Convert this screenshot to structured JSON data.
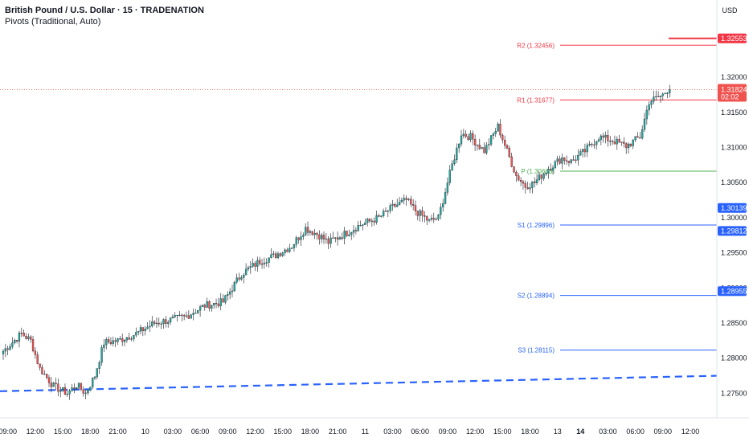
{
  "header": {
    "title": "British Pound / U.S. Dollar · 15 · TRADENATION",
    "indicator": "Pivots (Traditional, Auto)",
    "currency": "USD"
  },
  "colors": {
    "up": "#26a69a",
    "down": "#ef5350",
    "wick": "#131722",
    "resistance": "#f23645",
    "support": "#2962ff",
    "pivot": "#4caf50",
    "trend": "#2962ff"
  },
  "chart_data": {
    "type": "candlestick",
    "y_axis": {
      "min": 1.2715,
      "max": 1.331,
      "ticks": [
        1.275,
        1.28,
        1.285,
        1.29,
        1.295,
        1.3,
        1.305,
        1.31,
        1.315,
        1.32
      ],
      "tick_labels": [
        "1.27500",
        "1.28000",
        "1.28500",
        "1.29000",
        "1.29500",
        "1.30000",
        "1.30500",
        "1.31000",
        "1.31500",
        "1.32000"
      ]
    },
    "x_axis": {
      "ticks": [
        {
          "i": 2,
          "label": "09:00"
        },
        {
          "i": 14,
          "label": "12:00"
        },
        {
          "i": 26,
          "label": "15:00"
        },
        {
          "i": 38,
          "label": "18:00"
        },
        {
          "i": 50,
          "label": "21:00"
        },
        {
          "i": 62,
          "label": "10"
        },
        {
          "i": 74,
          "label": "03:00"
        },
        {
          "i": 86,
          "label": "06:00"
        },
        {
          "i": 98,
          "label": "09:00"
        },
        {
          "i": 110,
          "label": "12:00"
        },
        {
          "i": 122,
          "label": "15:00"
        },
        {
          "i": 134,
          "label": "18:00"
        },
        {
          "i": 146,
          "label": "21:00"
        },
        {
          "i": 158,
          "label": "11"
        },
        {
          "i": 170,
          "label": "03:00"
        },
        {
          "i": 182,
          "label": "06:00"
        },
        {
          "i": 194,
          "label": "09:00"
        },
        {
          "i": 206,
          "label": "12:00"
        },
        {
          "i": 218,
          "label": "15:00"
        },
        {
          "i": 230,
          "label": "18:00"
        },
        {
          "i": 242,
          "label": "13"
        },
        {
          "i": 252,
          "label": "14"
        },
        {
          "i": 264,
          "label": "03:00"
        },
        {
          "i": 276,
          "label": "06:00"
        },
        {
          "i": 288,
          "label": "09:00"
        },
        {
          "i": 300,
          "label": "12:00"
        }
      ]
    },
    "keyframes": [
      [
        0,
        1.281
      ],
      [
        8,
        1.2835
      ],
      [
        12,
        1.2825
      ],
      [
        16,
        1.2785
      ],
      [
        22,
        1.276
      ],
      [
        28,
        1.275
      ],
      [
        32,
        1.2762
      ],
      [
        36,
        1.275
      ],
      [
        40,
        1.2775
      ],
      [
        44,
        1.2822
      ],
      [
        50,
        1.2825
      ],
      [
        58,
        1.2835
      ],
      [
        66,
        1.285
      ],
      [
        74,
        1.2855
      ],
      [
        80,
        1.286
      ],
      [
        88,
        1.2875
      ],
      [
        96,
        1.288
      ],
      [
        104,
        1.292
      ],
      [
        112,
        1.2938
      ],
      [
        118,
        1.2945
      ],
      [
        126,
        1.296
      ],
      [
        132,
        1.2985
      ],
      [
        138,
        1.2975
      ],
      [
        142,
        1.2965
      ],
      [
        148,
        1.2975
      ],
      [
        156,
        1.299
      ],
      [
        164,
        1.3
      ],
      [
        170,
        1.3015
      ],
      [
        176,
        1.3025
      ],
      [
        180,
        1.301
      ],
      [
        186,
        1.2995
      ],
      [
        190,
        1.3
      ],
      [
        196,
        1.3075
      ],
      [
        200,
        1.312
      ],
      [
        204,
        1.3115
      ],
      [
        210,
        1.3095
      ],
      [
        216,
        1.313
      ],
      [
        220,
        1.3095
      ],
      [
        224,
        1.306
      ],
      [
        228,
        1.3045
      ],
      [
        232,
        1.305
      ],
      [
        238,
        1.307
      ],
      [
        244,
        1.3085
      ],
      [
        248,
        1.308
      ],
      [
        254,
        1.3095
      ],
      [
        260,
        1.3115
      ],
      [
        266,
        1.311
      ],
      [
        272,
        1.3102
      ],
      [
        278,
        1.3115
      ],
      [
        282,
        1.3165
      ],
      [
        288,
        1.3175
      ],
      [
        290,
        1.3182
      ],
      [
        291,
        1.3182
      ]
    ],
    "num_bars": 292,
    "last_price": 1.31824,
    "countdown": "02:02",
    "pivots": [
      {
        "name": "R2",
        "value": 1.32456,
        "label": "R2 (1.32456)",
        "kind": "resistance"
      },
      {
        "name": "R1",
        "value": 1.31677,
        "label": "R1 (1.31677)",
        "kind": "resistance"
      },
      {
        "name": "P",
        "value": 1.30663,
        "label": "P (1.30663)",
        "kind": "pivot"
      },
      {
        "name": "S1",
        "value": 1.29896,
        "label": "S1 (1.29896)",
        "kind": "support"
      },
      {
        "name": "S2",
        "value": 1.28894,
        "label": "S2 (1.28894)",
        "kind": "support"
      },
      {
        "name": "S3",
        "value": 1.28115,
        "label": "S3 (1.28115)",
        "kind": "support"
      }
    ],
    "price_badges": [
      {
        "value": 1.32553,
        "label": "1.32553",
        "color": "#f23645"
      },
      {
        "value": 1.30139,
        "label": "1.30139",
        "color": "#2962ff"
      },
      {
        "value": 1.29812,
        "label": "1.29812",
        "color": "#2962ff"
      },
      {
        "value": 1.28955,
        "label": "1.28955",
        "color": "#2962ff"
      }
    ],
    "trendline": {
      "start": 1.2753,
      "end": 1.2775
    }
  }
}
